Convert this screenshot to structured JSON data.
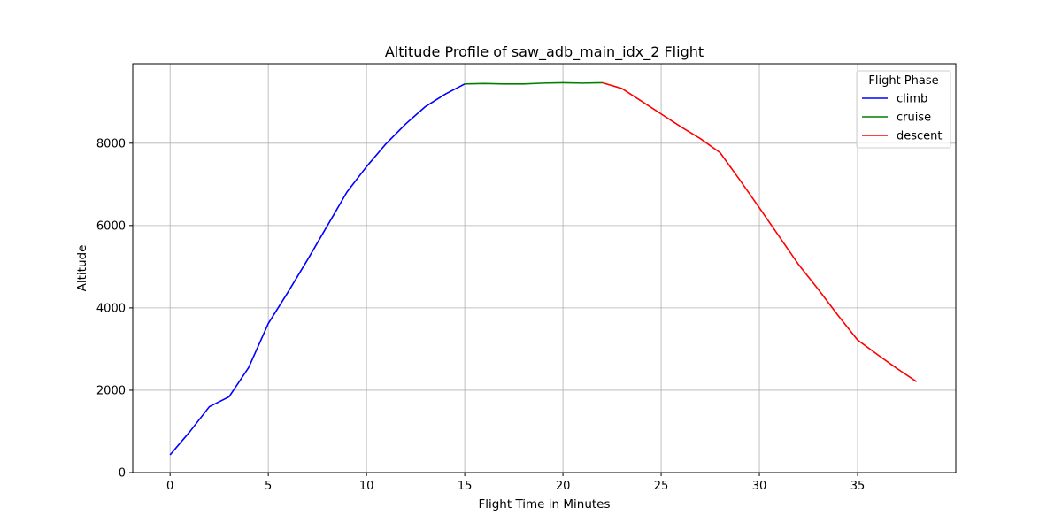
{
  "chart_data": {
    "type": "line",
    "title": "Altitude Profile of saw_adb_main_idx_2 Flight",
    "xlabel": "Flight Time in Minutes",
    "ylabel": "Altitude",
    "xlim": [
      -1.9,
      40.0
    ],
    "ylim": [
      0,
      9930
    ],
    "xticks": [
      0,
      5,
      10,
      15,
      20,
      25,
      30,
      35
    ],
    "yticks": [
      0,
      2000,
      4000,
      6000,
      8000
    ],
    "grid": true,
    "legend": {
      "title": "Flight Phase",
      "placement": "top-right"
    },
    "series": [
      {
        "name": "climb",
        "color": "#0000ff",
        "x": [
          0,
          1,
          2,
          3,
          4,
          5,
          6,
          7,
          8,
          9,
          10,
          11,
          12,
          13,
          14,
          15
        ],
        "y": [
          430,
          990,
          1600,
          1840,
          2550,
          3620,
          4380,
          5170,
          5990,
          6810,
          7430,
          7990,
          8470,
          8890,
          9190,
          9440
        ]
      },
      {
        "name": "cruise",
        "color": "#008000",
        "x": [
          15,
          16,
          17,
          18,
          19,
          20,
          21,
          22
        ],
        "y": [
          9440,
          9450,
          9440,
          9440,
          9460,
          9470,
          9460,
          9470
        ]
      },
      {
        "name": "descent",
        "color": "#ff0000",
        "x": [
          22,
          23,
          24,
          25,
          26,
          27,
          28,
          29,
          30,
          31,
          32,
          33,
          34,
          35,
          36,
          37,
          38
        ],
        "y": [
          9470,
          9330,
          9020,
          8710,
          8400,
          8110,
          7770,
          7110,
          6430,
          5740,
          5050,
          4450,
          3820,
          3220,
          2870,
          2530,
          2210
        ]
      }
    ]
  }
}
